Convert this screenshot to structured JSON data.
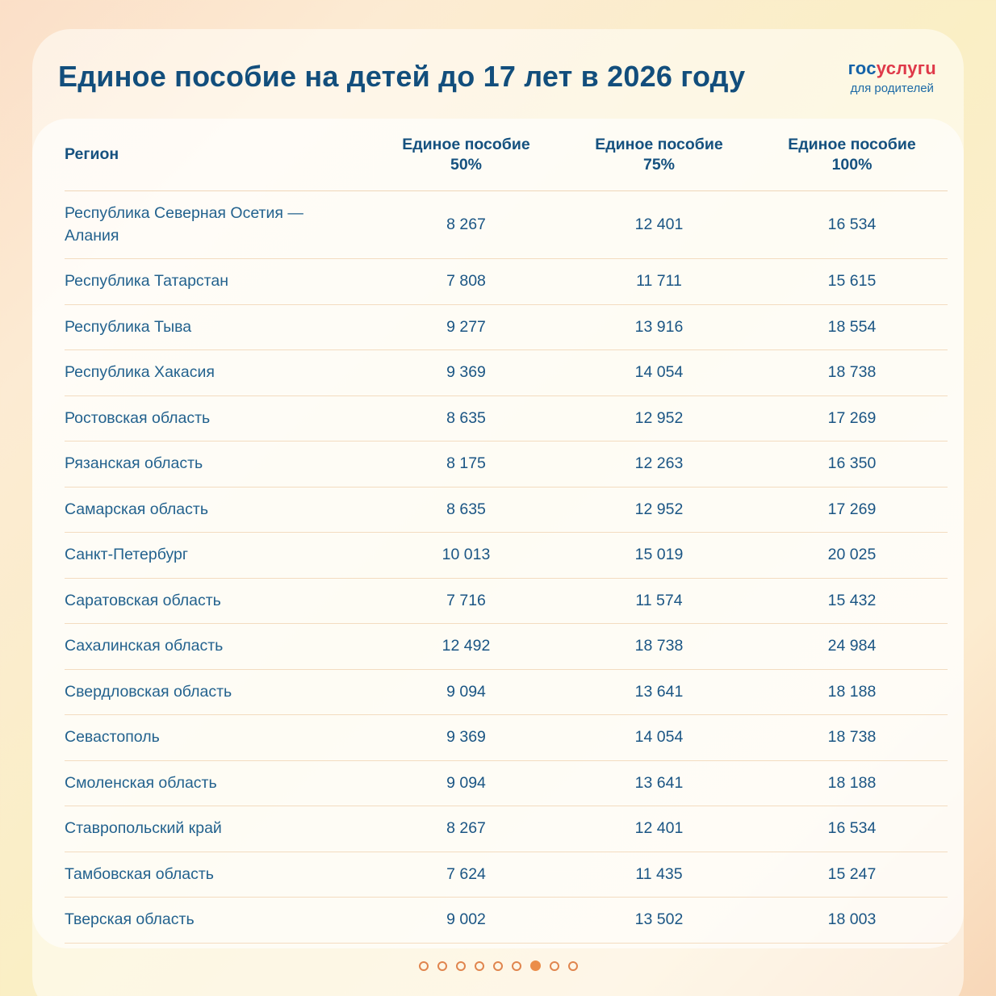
{
  "page": {
    "title": "Единое пособие на детей до 17 лет в 2026 году",
    "logo": {
      "blue_part": "гос",
      "red_part": "услугu",
      "tagline": "для родителей"
    },
    "colors": {
      "title_blue": "#124e7c",
      "table_text_blue": "#23628e",
      "number_blue": "#1a5584",
      "divider_tan": "#f3dcc0",
      "logo_blue": "#1463a8",
      "logo_red": "#df3949",
      "dot_orange": "#e0854e",
      "dot_active_orange": "#eb8d4a",
      "bg_peach": "#fbdfc8",
      "bg_yellow": "#faefc5"
    }
  },
  "chart_data": {
    "type": "table",
    "title": "Единое пособие на детей до 17 лет в 2026 году",
    "columns": [
      {
        "line1": "Регион",
        "line2": ""
      },
      {
        "line1": "Единое пособие",
        "line2": "50%"
      },
      {
        "line1": "Единое пособие",
        "line2": "75%"
      },
      {
        "line1": "Единое пособие",
        "line2": "100%"
      }
    ],
    "rows": [
      [
        "Республика Северная Осетия —\nАлания",
        "8 267",
        "12 401",
        "16 534"
      ],
      [
        "Республика Татарстан",
        "7 808",
        "11 711",
        "15 615"
      ],
      [
        "Республика Тыва",
        "9 277",
        "13 916",
        "18 554"
      ],
      [
        "Республика Хакасия",
        "9 369",
        "14 054",
        "18 738"
      ],
      [
        "Ростовская область",
        "8 635",
        "12 952",
        "17 269"
      ],
      [
        "Рязанская область",
        "8 175",
        "12 263",
        "16 350"
      ],
      [
        "Самарская область",
        "8 635",
        "12 952",
        "17 269"
      ],
      [
        "Санкт-Петербург",
        "10 013",
        "15 019",
        "20 025"
      ],
      [
        "Саратовская область",
        "7 716",
        "11 574",
        "15 432"
      ],
      [
        "Сахалинская область",
        "12 492",
        "18 738",
        "24 984"
      ],
      [
        "Свердловская область",
        "9 094",
        "13 641",
        "18 188"
      ],
      [
        "Севастополь",
        "9 369",
        "14 054",
        "18 738"
      ],
      [
        "Смоленская область",
        "9 094",
        "13 641",
        "18 188"
      ],
      [
        "Ставропольский край",
        "8 267",
        "12 401",
        "16 534"
      ],
      [
        "Тамбовская область",
        "7 624",
        "11 435",
        "15 247"
      ],
      [
        "Тверская область",
        "9 002",
        "13 502",
        "18 003"
      ]
    ]
  },
  "pagination": {
    "total": 9,
    "active": 7
  }
}
